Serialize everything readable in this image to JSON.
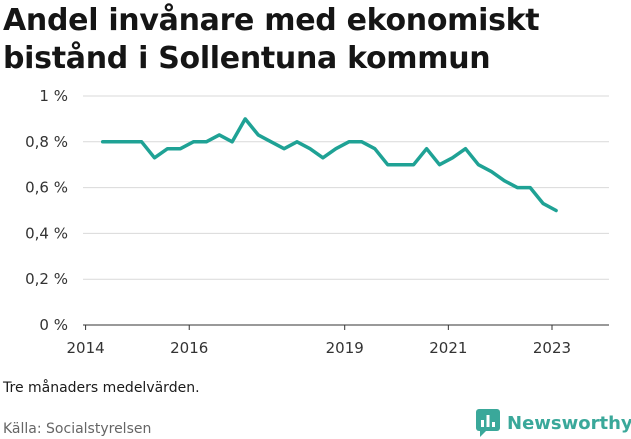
{
  "chart_data": {
    "type": "line",
    "title": "Andel invånare med ekonomiskt bistånd i Sollentuna kommun",
    "xlabel": "",
    "ylabel": "",
    "x_ticks": [
      "2014",
      "2016",
      "2019",
      "2021",
      "2023"
    ],
    "x_tick_values": [
      2014,
      2016,
      2019,
      2021,
      2023
    ],
    "y_ticks": [
      "0 %",
      "0,2 %",
      "0,4 %",
      "0,6 %",
      "0,8 %",
      "1 %"
    ],
    "y_tick_values": [
      0,
      0.2,
      0.4,
      0.6,
      0.8,
      1.0
    ],
    "xlim": [
      2013.95,
      2024.1
    ],
    "ylim": [
      0,
      1.0
    ],
    "grid": true,
    "line_color": "#1fa295",
    "series": [
      {
        "x": [
          2014.33,
          2014.58,
          2014.83,
          2015.08,
          2015.33,
          2015.58,
          2015.83,
          2016.08,
          2016.33,
          2016.58,
          2016.83,
          2017.08,
          2017.33,
          2017.58,
          2017.83,
          2018.08,
          2018.33,
          2018.58,
          2018.83,
          2019.08,
          2019.33,
          2019.58,
          2019.83,
          2020.08,
          2020.33,
          2020.58,
          2020.83,
          2021.08,
          2021.33,
          2021.58,
          2021.83,
          2022.08,
          2022.33,
          2022.58,
          2022.83,
          2023.08
        ],
        "values": [
          0.8,
          0.8,
          0.8,
          0.8,
          0.73,
          0.77,
          0.77,
          0.8,
          0.8,
          0.83,
          0.8,
          0.9,
          0.83,
          0.8,
          0.77,
          0.8,
          0.77,
          0.73,
          0.77,
          0.8,
          0.8,
          0.77,
          0.7,
          0.7,
          0.7,
          0.77,
          0.7,
          0.73,
          0.77,
          0.7,
          0.67,
          0.63,
          0.6,
          0.6,
          0.53,
          0.5
        ]
      }
    ]
  },
  "note": "Tre månaders medelvärden.",
  "source": "Källa: Socialstyrelsen",
  "brand": {
    "name": "Newsworthy",
    "color": "#3aa89a",
    "icon": "bar-chart-speech-bubble-icon"
  }
}
